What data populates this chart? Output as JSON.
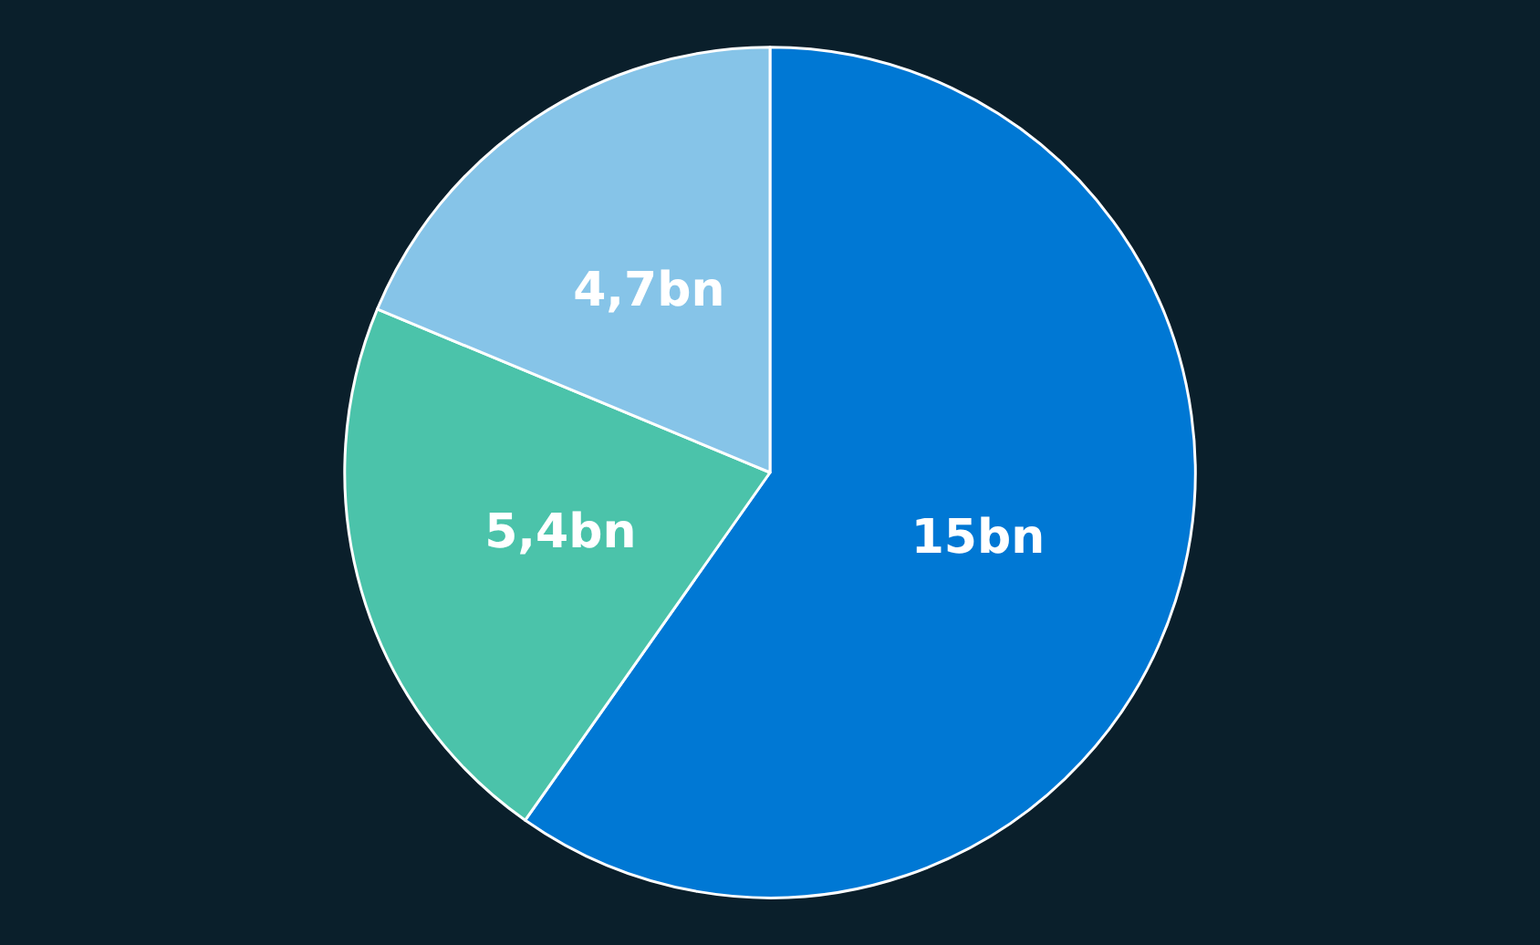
{
  "chart_data": {
    "type": "pie",
    "categories": [
      null,
      null,
      null
    ],
    "values": [
      15,
      5.4,
      4.7
    ],
    "value_labels": [
      "15bn",
      "5,4bn",
      "4,7bn"
    ],
    "colors": [
      "#0078d4",
      "#4bc3aa",
      "#86c4e8"
    ]
  }
}
